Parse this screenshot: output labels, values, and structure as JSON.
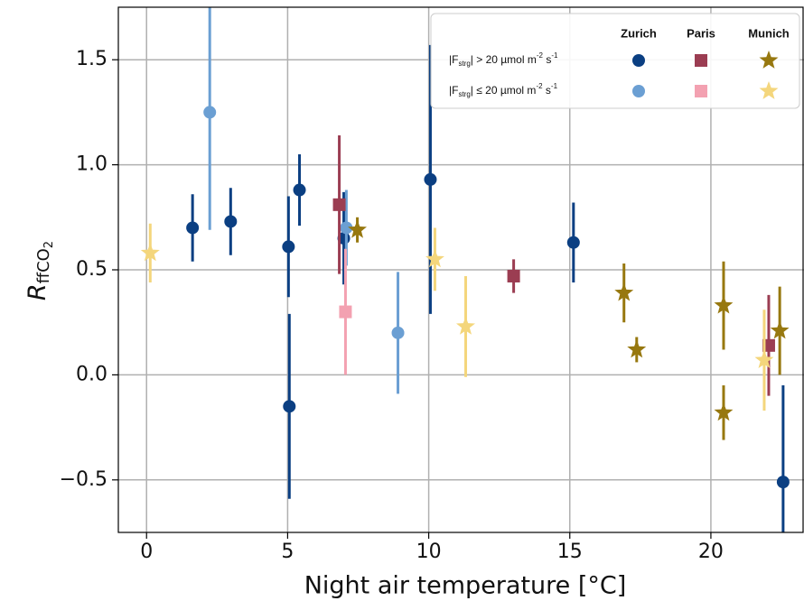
{
  "chart_data": {
    "type": "scatter",
    "xlabel": "Night air temperature [°C]",
    "ylabel": {
      "main": "R",
      "sub": "ffCO",
      "subsub": "2"
    },
    "xlim": [
      -1.0,
      23.3
    ],
    "ylim": [
      -0.75,
      1.75
    ],
    "xticks": [
      0,
      5,
      10,
      15,
      20
    ],
    "yticks": [
      {
        "value": -0.5,
        "label": "−0.5"
      },
      {
        "value": 0,
        "label": "0.0"
      },
      0.5,
      {
        "value": 1,
        "label": "1.0"
      },
      1.5
    ],
    "grid": true,
    "legend_position": "upper right",
    "legend_rows": [
      [
        {
          "t": "|F"
        },
        {
          "t": "strg",
          "sub": true
        },
        {
          "t": "| > 20 µmol m"
        },
        {
          "t": "-2",
          "sup": true
        },
        {
          "t": " s"
        },
        {
          "t": "-1",
          "sup": true
        }
      ],
      [
        {
          "t": "|F"
        },
        {
          "t": "strg",
          "sub": true
        },
        {
          "t": "| ≤ 20 µmol m"
        },
        {
          "t": "-2",
          "sup": true
        },
        {
          "t": " s"
        },
        {
          "t": "-1",
          "sup": true
        }
      ]
    ],
    "series": [
      {
        "name": "Zurich",
        "marker": "circle",
        "groups": [
          {
            "color": "#0b3f82",
            "x": [
              1.63,
              2.98,
              5.03,
              5.42,
              6.99,
              5.06,
              10.06,
              15.13,
              22.56
            ],
            "y": [
              0.7,
              0.73,
              0.61,
              0.88,
              0.65,
              -0.15,
              0.93,
              0.63,
              -0.51
            ],
            "err": [
              0.16,
              0.16,
              0.24,
              0.17,
              0.22,
              0.44,
              0.64,
              0.19,
              0.46
            ]
          },
          {
            "color": "#6b9fd3",
            "x": [
              2.24,
              8.91,
              7.08
            ],
            "y": [
              1.25,
              0.2,
              0.7
            ],
            "err": [
              0.56,
              0.29,
              0.18
            ]
          }
        ]
      },
      {
        "name": "Paris",
        "marker": "square",
        "groups": [
          {
            "color": "#9b3d52",
            "x": [
              6.83,
              13.01,
              22.05
            ],
            "y": [
              0.81,
              0.47,
              0.14
            ],
            "err": [
              0.33,
              0.08,
              0.24
            ]
          },
          {
            "color": "#f3a1b1",
            "x": [
              7.05
            ],
            "y": [
              0.3
            ],
            "err": [
              0.3
            ]
          }
        ]
      },
      {
        "name": "Munich",
        "marker": "star",
        "groups": [
          {
            "color": "#97780f",
            "x": [
              7.47,
              16.92,
              17.37,
              20.45,
              20.45,
              22.44
            ],
            "y": [
              0.69,
              0.39,
              0.12,
              0.33,
              -0.18,
              0.21
            ],
            "err": [
              0.06,
              0.14,
              0.06,
              0.21,
              0.13,
              0.21
            ]
          },
          {
            "color": "#f4d67c",
            "x": [
              0.13,
              10.22,
              11.31,
              21.89
            ],
            "y": [
              0.58,
              0.55,
              0.23,
              0.07
            ],
            "err": [
              0.14,
              0.15,
              0.24,
              0.24
            ]
          }
        ]
      }
    ]
  }
}
